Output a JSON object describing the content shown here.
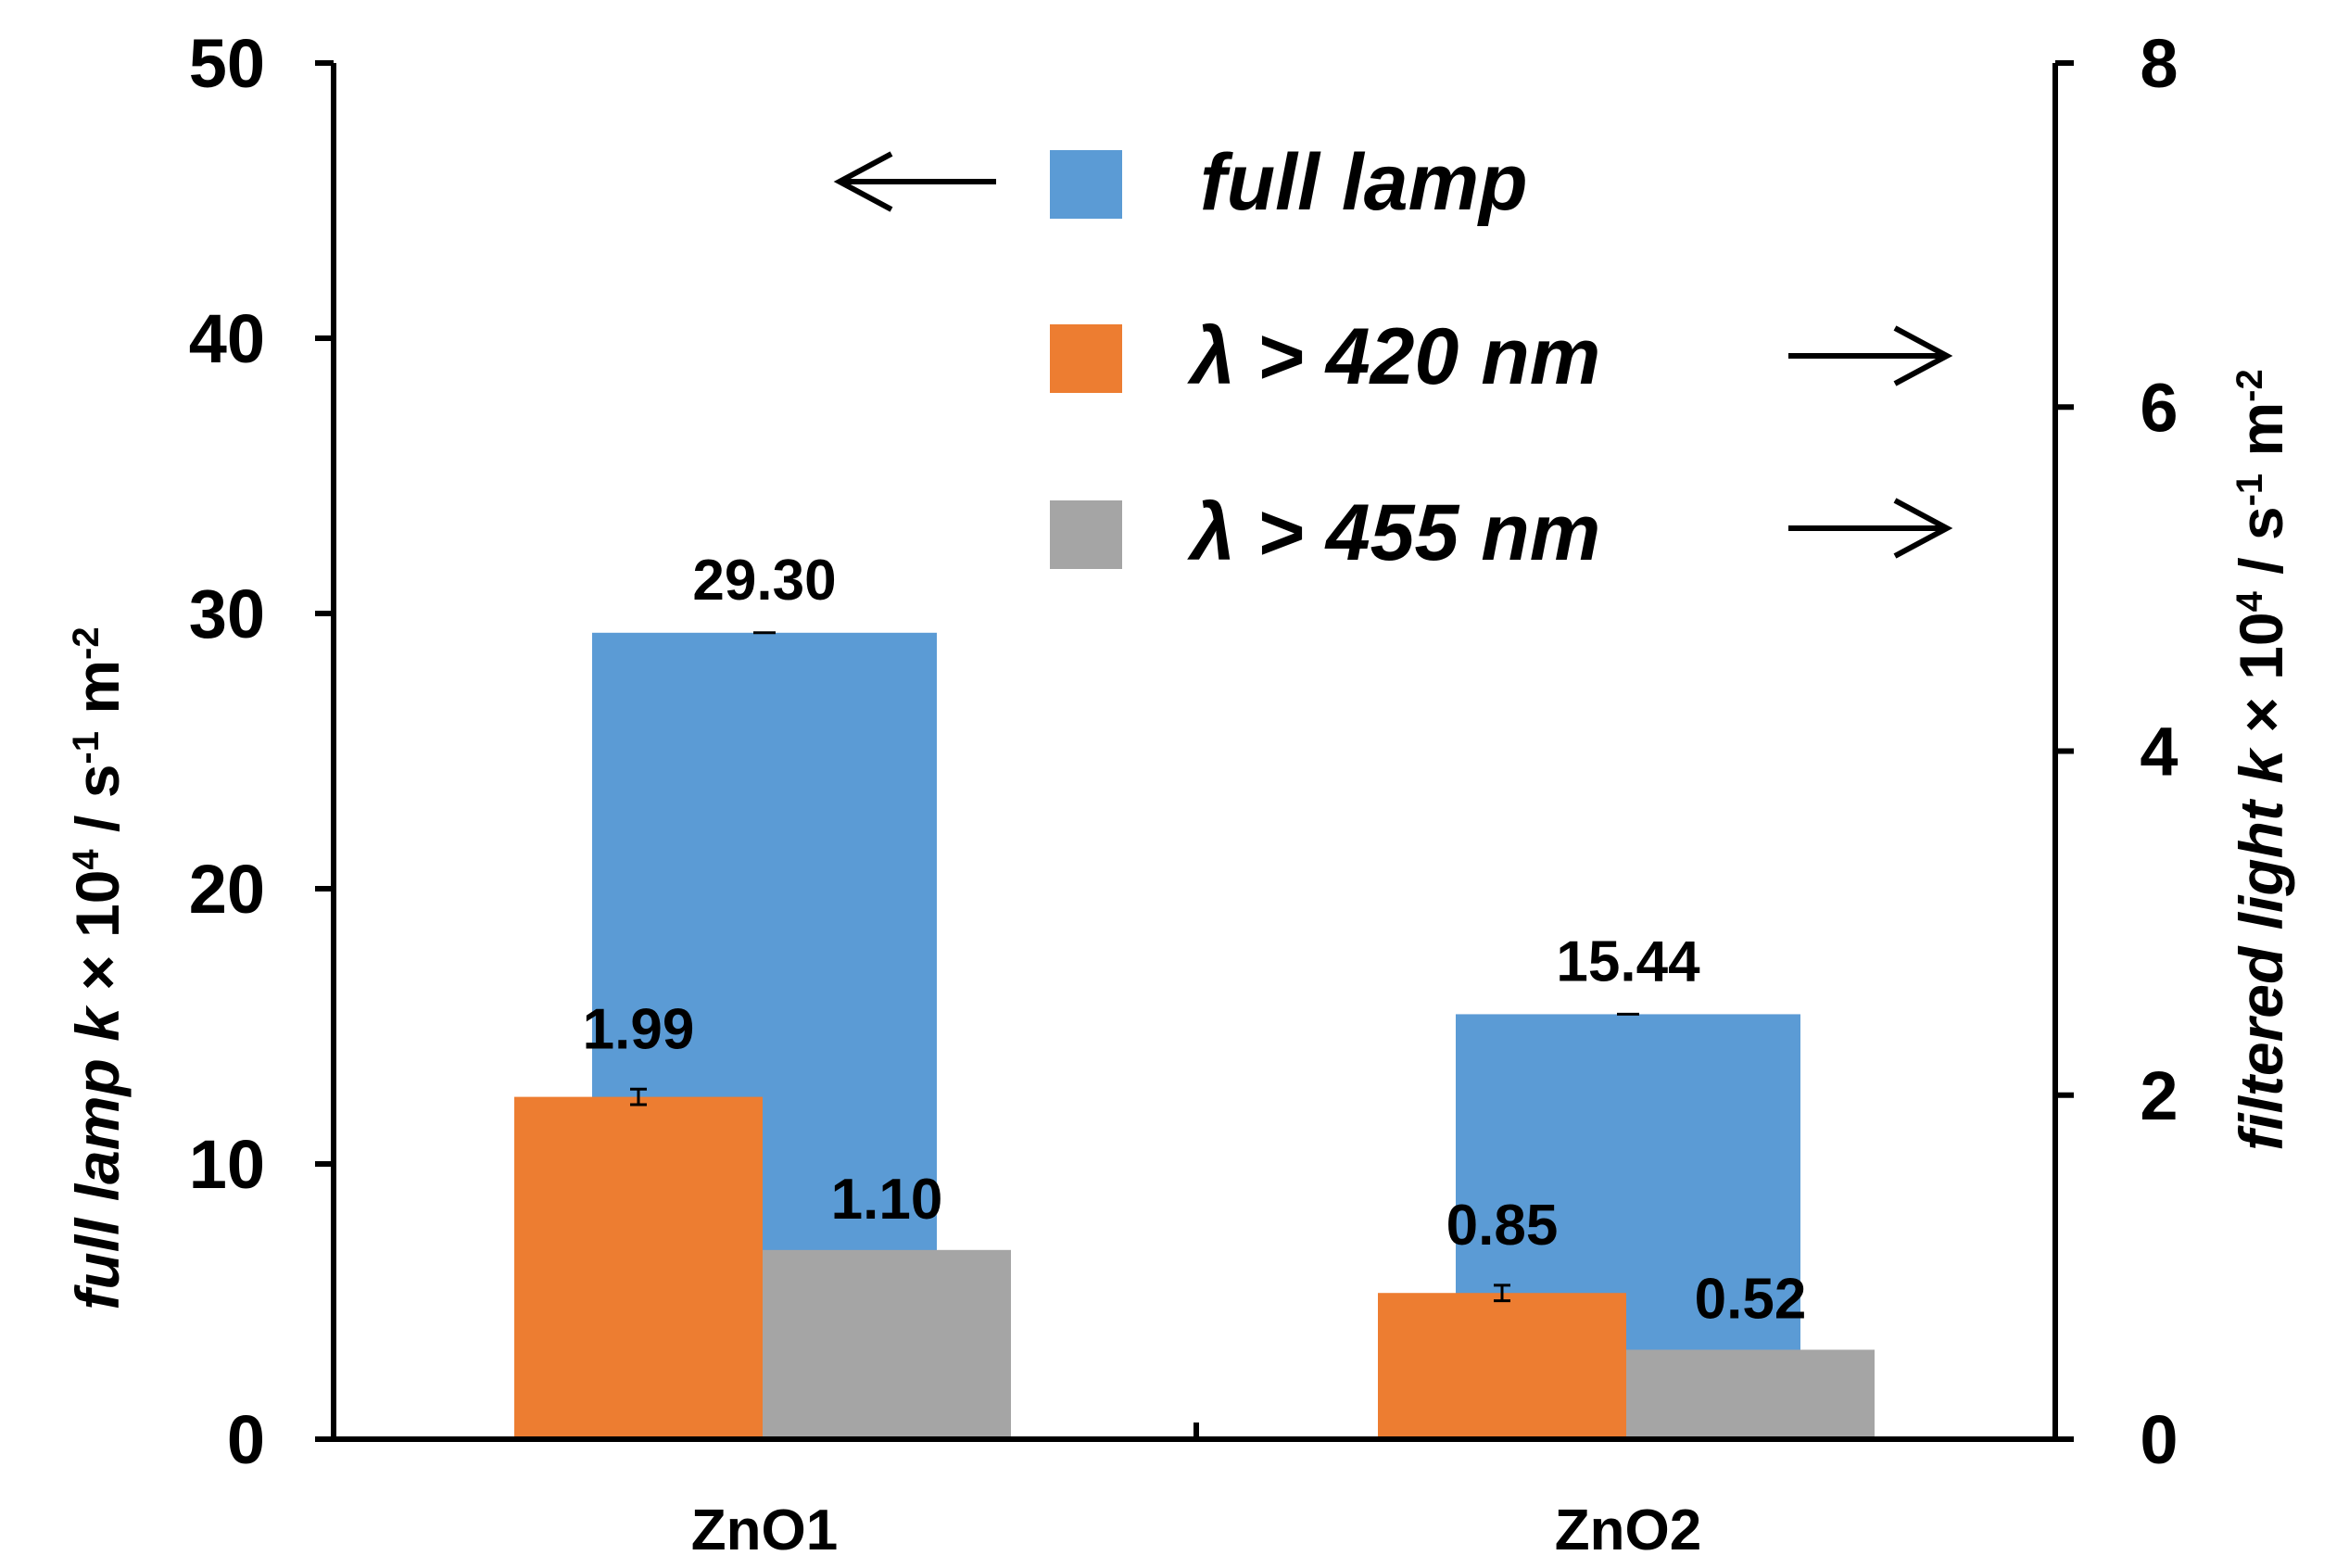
{
  "chart_data": {
    "type": "bar",
    "categories": [
      "ZnO1",
      "ZnO2"
    ],
    "series": [
      {
        "name": "full lamp",
        "axis": "left",
        "color": "#5b9bd5",
        "values": [
          29.3,
          15.44
        ],
        "labels": [
          "29.30",
          "15.44"
        ]
      },
      {
        "name": "λ > 420 nm",
        "axis": "right",
        "color": "#ed7d31",
        "values": [
          1.99,
          0.85
        ],
        "labels": [
          "1.99",
          "0.85"
        ]
      },
      {
        "name": "λ > 455 nm",
        "axis": "right",
        "color": "#a5a5a5",
        "values": [
          1.1,
          0.52
        ],
        "labels": [
          "1.10",
          "0.52"
        ]
      }
    ],
    "y_left": {
      "range": [
        0,
        50
      ],
      "ticks": [
        "0",
        "10",
        "20",
        "30",
        "40",
        "50"
      ]
    },
    "y_right": {
      "range": [
        0,
        8
      ],
      "ticks": [
        "0",
        "2",
        "4",
        "6",
        "8"
      ]
    },
    "ylabel_left": {
      "italic": "full lamp k",
      "plain": " × 10",
      "sup1": "4",
      "mid": " / s",
      "sup2": "-1",
      "end": " m",
      "sup3": "-2"
    },
    "ylabel_right": {
      "italic1": "filtered light",
      "italic2": "k",
      "plain": " × 10",
      "sup1": "4",
      "mid": " / s",
      "sup2": "-1",
      "end": " m",
      "sup3": "-2"
    },
    "legend": {
      "entries": [
        "full lamp",
        "λ > 420 nm",
        "λ > 455 nm"
      ],
      "arrows": [
        "left-axis",
        "right-axis",
        "right-axis"
      ]
    }
  }
}
